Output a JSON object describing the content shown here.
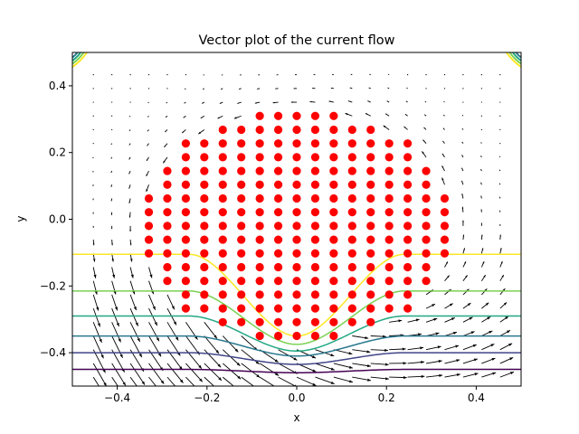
{
  "chart_data": {
    "type": "vector-field",
    "title": "Vector plot of the current flow",
    "xlabel": "x",
    "ylabel": "y",
    "xlim": [
      -0.5,
      0.5
    ],
    "ylim": [
      -0.5,
      0.5
    ],
    "xticks": [
      -0.4,
      -0.2,
      0.0,
      0.2,
      0.4
    ],
    "xtick_labels": [
      "−0.4",
      "−0.2",
      "0.0",
      "0.2",
      "0.4"
    ],
    "yticks": [
      -0.4,
      -0.2,
      0.0,
      0.2,
      0.4
    ],
    "ytick_labels": [
      "−0.4",
      "−0.2",
      "0.0",
      "0.2",
      "0.4"
    ],
    "grid": false,
    "dot_color": "#ff0000",
    "dot_region": {
      "shape": "disc",
      "center": [
        0.0,
        -0.02
      ],
      "radius": 0.35,
      "grid_step": 0.0412
    },
    "contour_levels": [
      {
        "baseline": -0.105,
        "dip": -0.35,
        "color": "#fde725"
      },
      {
        "baseline": -0.215,
        "dip": -0.375,
        "color": "#7ad151"
      },
      {
        "baseline": -0.29,
        "dip": -0.395,
        "color": "#22a884"
      },
      {
        "baseline": -0.35,
        "dip": -0.41,
        "color": "#2a788e"
      },
      {
        "baseline": -0.4,
        "dip": -0.435,
        "color": "#414487"
      },
      {
        "baseline": -0.45,
        "dip": -0.46,
        "color": "#440154"
      }
    ],
    "quiver": {
      "grid_step": 0.0412,
      "color": "#000000"
    }
  }
}
